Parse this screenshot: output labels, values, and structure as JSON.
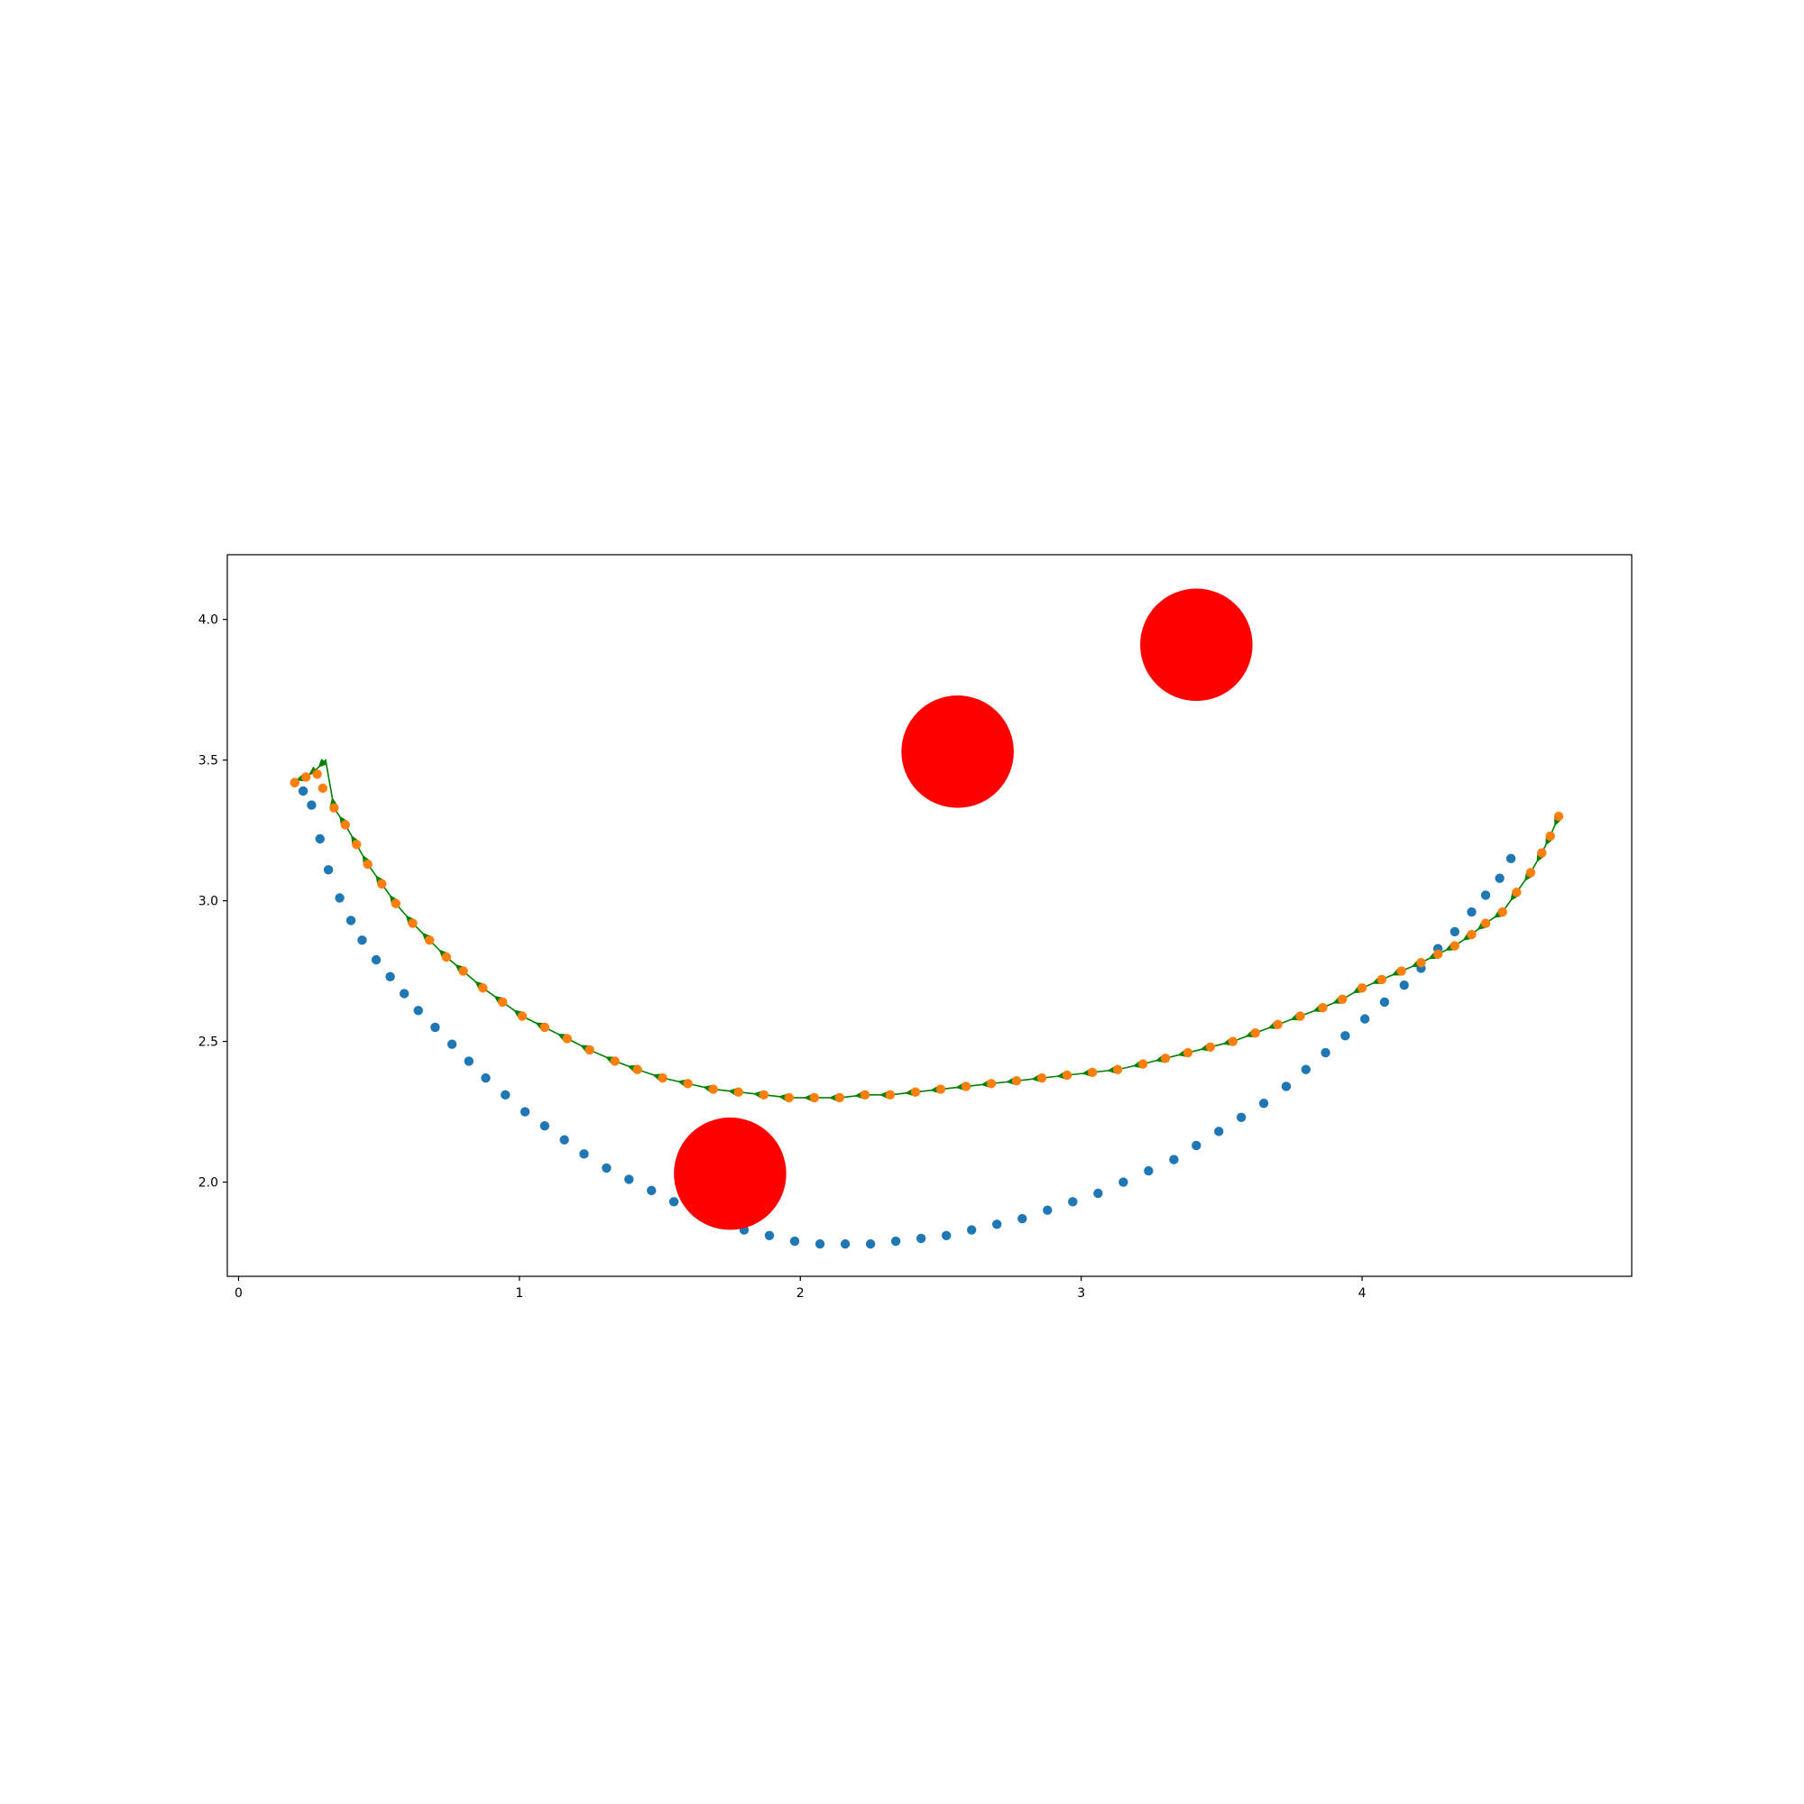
{
  "chart_data": {
    "type": "scatter",
    "title": "",
    "xlabel": "",
    "ylabel": "",
    "xlim": [
      -0.04,
      4.96
    ],
    "ylim": [
      1.665,
      4.23
    ],
    "grid": false,
    "x_ticks": [
      0,
      1,
      2,
      3,
      4
    ],
    "y_ticks": [
      2.0,
      2.5,
      3.0,
      3.5,
      4.0
    ],
    "x_tick_labels": [
      "0",
      "1",
      "2",
      "3",
      "4"
    ],
    "y_tick_labels": [
      "2.0",
      "2.5",
      "3.0",
      "3.5",
      "4.0"
    ],
    "obstacles": [
      {
        "x": 1.75,
        "y": 2.03,
        "r": 0.2,
        "color": "#ff0000"
      },
      {
        "x": 2.56,
        "y": 3.53,
        "r": 0.2,
        "color": "#ff0000"
      },
      {
        "x": 3.41,
        "y": 3.91,
        "r": 0.2,
        "color": "#ff0000"
      }
    ],
    "series": [
      {
        "color": "#1f77b4",
        "points": [
          [
            0.2,
            3.42
          ],
          [
            0.23,
            3.39
          ],
          [
            0.26,
            3.34
          ],
          [
            0.29,
            3.22
          ],
          [
            0.32,
            3.11
          ],
          [
            0.36,
            3.01
          ],
          [
            0.4,
            2.93
          ],
          [
            0.44,
            2.86
          ],
          [
            0.49,
            2.79
          ],
          [
            0.54,
            2.73
          ],
          [
            0.59,
            2.67
          ],
          [
            0.64,
            2.61
          ],
          [
            0.7,
            2.55
          ],
          [
            0.76,
            2.49
          ],
          [
            0.82,
            2.43
          ],
          [
            0.88,
            2.37
          ],
          [
            0.95,
            2.31
          ],
          [
            1.02,
            2.25
          ],
          [
            1.09,
            2.2
          ],
          [
            1.16,
            2.15
          ],
          [
            1.23,
            2.1
          ],
          [
            1.31,
            2.05
          ],
          [
            1.39,
            2.01
          ],
          [
            1.47,
            1.97
          ],
          [
            1.55,
            1.93
          ],
          [
            1.63,
            1.89
          ],
          [
            1.71,
            1.86
          ],
          [
            1.8,
            1.83
          ],
          [
            1.89,
            1.81
          ],
          [
            1.98,
            1.79
          ],
          [
            2.07,
            1.78
          ],
          [
            2.16,
            1.78
          ],
          [
            2.25,
            1.78
          ],
          [
            2.34,
            1.79
          ],
          [
            2.43,
            1.8
          ],
          [
            2.52,
            1.81
          ],
          [
            2.61,
            1.83
          ],
          [
            2.7,
            1.85
          ],
          [
            2.79,
            1.87
          ],
          [
            2.88,
            1.9
          ],
          [
            2.97,
            1.93
          ],
          [
            3.06,
            1.96
          ],
          [
            3.15,
            2.0
          ],
          [
            3.24,
            2.04
          ],
          [
            3.33,
            2.08
          ],
          [
            3.41,
            2.13
          ],
          [
            3.49,
            2.18
          ],
          [
            3.57,
            2.23
          ],
          [
            3.65,
            2.28
          ],
          [
            3.73,
            2.34
          ],
          [
            3.8,
            2.4
          ],
          [
            3.87,
            2.46
          ],
          [
            3.94,
            2.52
          ],
          [
            4.01,
            2.58
          ],
          [
            4.08,
            2.64
          ],
          [
            4.15,
            2.7
          ],
          [
            4.21,
            2.76
          ],
          [
            4.27,
            2.83
          ],
          [
            4.33,
            2.89
          ],
          [
            4.39,
            2.96
          ],
          [
            4.44,
            3.02
          ],
          [
            4.49,
            3.08
          ],
          [
            4.53,
            3.15
          ]
        ]
      },
      {
        "color": "#ff7f0e",
        "points": [
          [
            0.2,
            3.42
          ],
          [
            0.24,
            3.44
          ],
          [
            0.28,
            3.45
          ],
          [
            0.3,
            3.4
          ],
          [
            0.34,
            3.33
          ],
          [
            0.38,
            3.27
          ],
          [
            0.42,
            3.2
          ],
          [
            0.46,
            3.13
          ],
          [
            0.51,
            3.06
          ],
          [
            0.56,
            2.99
          ],
          [
            0.62,
            2.92
          ],
          [
            0.68,
            2.86
          ],
          [
            0.74,
            2.8
          ],
          [
            0.8,
            2.75
          ],
          [
            0.87,
            2.69
          ],
          [
            0.94,
            2.64
          ],
          [
            1.01,
            2.59
          ],
          [
            1.09,
            2.55
          ],
          [
            1.17,
            2.51
          ],
          [
            1.25,
            2.47
          ],
          [
            1.34,
            2.43
          ],
          [
            1.42,
            2.4
          ],
          [
            1.51,
            2.37
          ],
          [
            1.6,
            2.35
          ],
          [
            1.69,
            2.33
          ],
          [
            1.78,
            2.32
          ],
          [
            1.87,
            2.31
          ],
          [
            1.96,
            2.3
          ],
          [
            2.05,
            2.3
          ],
          [
            2.14,
            2.3
          ],
          [
            2.23,
            2.31
          ],
          [
            2.32,
            2.31
          ],
          [
            2.41,
            2.32
          ],
          [
            2.5,
            2.33
          ],
          [
            2.59,
            2.34
          ],
          [
            2.68,
            2.35
          ],
          [
            2.77,
            2.36
          ],
          [
            2.86,
            2.37
          ],
          [
            2.95,
            2.38
          ],
          [
            3.04,
            2.39
          ],
          [
            3.13,
            2.4
          ],
          [
            3.22,
            2.42
          ],
          [
            3.3,
            2.44
          ],
          [
            3.38,
            2.46
          ],
          [
            3.46,
            2.48
          ],
          [
            3.54,
            2.5
          ],
          [
            3.62,
            2.53
          ],
          [
            3.7,
            2.56
          ],
          [
            3.78,
            2.59
          ],
          [
            3.86,
            2.62
          ],
          [
            3.93,
            2.65
          ],
          [
            4.0,
            2.69
          ],
          [
            4.07,
            2.72
          ],
          [
            4.14,
            2.75
          ],
          [
            4.21,
            2.78
          ],
          [
            4.27,
            2.81
          ],
          [
            4.33,
            2.84
          ],
          [
            4.39,
            2.88
          ],
          [
            4.44,
            2.92
          ],
          [
            4.5,
            2.96
          ],
          [
            4.55,
            3.03
          ],
          [
            4.6,
            3.1
          ],
          [
            4.64,
            3.17
          ],
          [
            4.67,
            3.23
          ],
          [
            4.7,
            3.3
          ]
        ]
      }
    ],
    "arrows": {
      "color": "#008000",
      "points": [
        [
          0.21,
          3.43
        ],
        [
          0.24,
          3.44
        ],
        [
          0.28,
          3.47
        ],
        [
          0.31,
          3.5
        ],
        [
          0.34,
          3.33
        ],
        [
          0.38,
          3.27
        ],
        [
          0.42,
          3.2
        ],
        [
          0.46,
          3.13
        ],
        [
          0.51,
          3.06
        ],
        [
          0.56,
          2.99
        ],
        [
          0.62,
          2.92
        ],
        [
          0.68,
          2.86
        ],
        [
          0.74,
          2.8
        ],
        [
          0.8,
          2.75
        ],
        [
          0.87,
          2.69
        ],
        [
          0.94,
          2.64
        ],
        [
          1.01,
          2.59
        ],
        [
          1.09,
          2.55
        ],
        [
          1.17,
          2.51
        ],
        [
          1.25,
          2.47
        ],
        [
          1.34,
          2.43
        ],
        [
          1.42,
          2.4
        ],
        [
          1.51,
          2.37
        ],
        [
          1.6,
          2.35
        ],
        [
          1.69,
          2.33
        ],
        [
          1.78,
          2.32
        ],
        [
          1.87,
          2.31
        ],
        [
          1.96,
          2.3
        ],
        [
          2.05,
          2.3
        ],
        [
          2.14,
          2.3
        ],
        [
          2.23,
          2.31
        ],
        [
          2.32,
          2.31
        ],
        [
          2.41,
          2.32
        ],
        [
          2.5,
          2.33
        ],
        [
          2.59,
          2.34
        ],
        [
          2.68,
          2.35
        ],
        [
          2.77,
          2.36
        ],
        [
          2.86,
          2.37
        ],
        [
          2.95,
          2.38
        ],
        [
          3.04,
          2.39
        ],
        [
          3.13,
          2.4
        ],
        [
          3.22,
          2.42
        ],
        [
          3.3,
          2.44
        ],
        [
          3.38,
          2.46
        ],
        [
          3.46,
          2.48
        ],
        [
          3.54,
          2.5
        ],
        [
          3.62,
          2.53
        ],
        [
          3.7,
          2.56
        ],
        [
          3.78,
          2.59
        ],
        [
          3.86,
          2.62
        ],
        [
          3.93,
          2.65
        ],
        [
          4.0,
          2.69
        ],
        [
          4.07,
          2.72
        ],
        [
          4.14,
          2.75
        ],
        [
          4.21,
          2.78
        ],
        [
          4.27,
          2.81
        ],
        [
          4.33,
          2.84
        ],
        [
          4.39,
          2.88
        ],
        [
          4.44,
          2.92
        ],
        [
          4.5,
          2.96
        ],
        [
          4.55,
          3.03
        ],
        [
          4.6,
          3.1
        ],
        [
          4.64,
          3.17
        ],
        [
          4.67,
          3.23
        ],
        [
          4.7,
          3.3
        ]
      ]
    }
  }
}
